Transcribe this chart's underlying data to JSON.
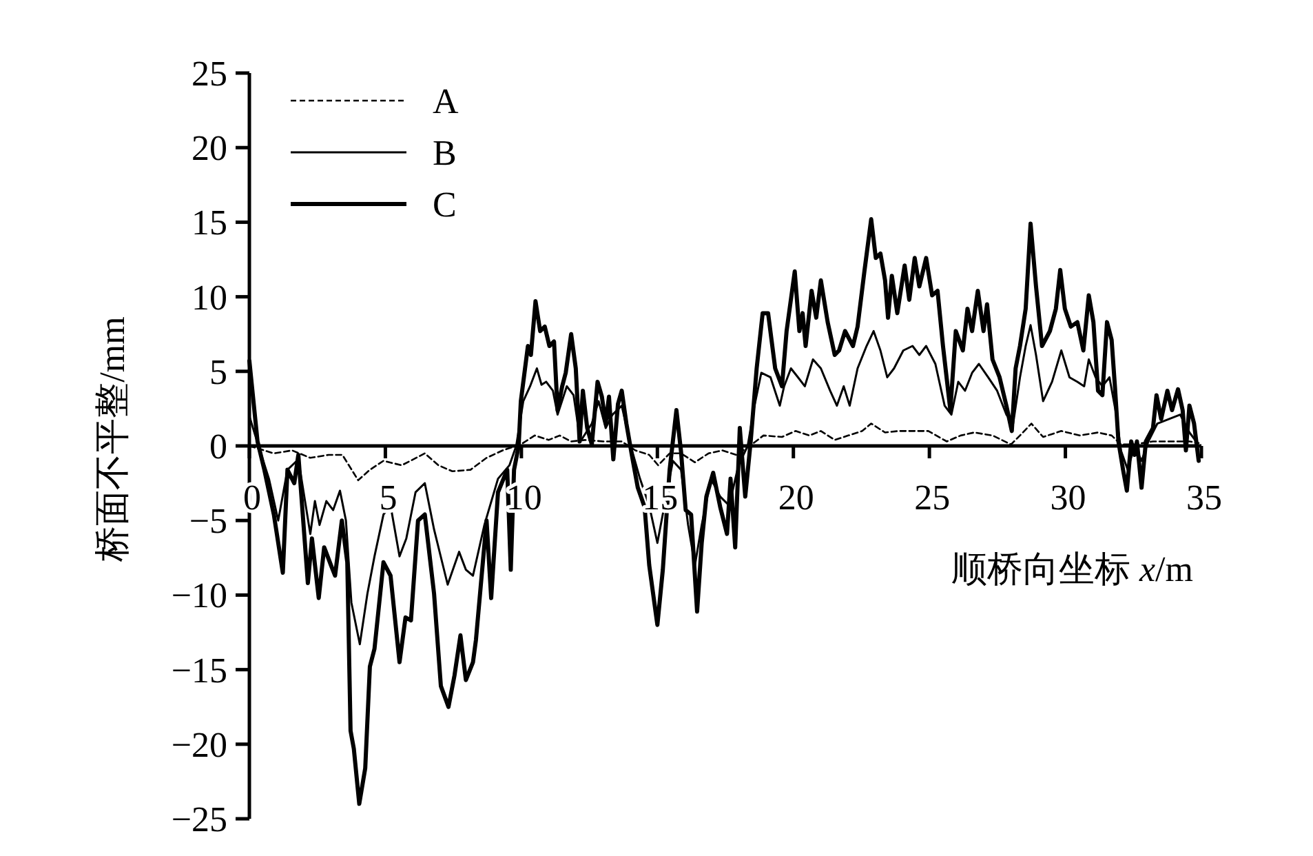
{
  "chart_data": {
    "type": "line",
    "xlabel": "顺桥向坐标 *x*/m",
    "ylabel": "桥面不平整/mm",
    "xlim": [
      0,
      35
    ],
    "ylim": [
      -25,
      25
    ],
    "xticks": [
      0,
      5,
      10,
      15,
      20,
      25,
      30,
      35
    ],
    "yticks": [
      {
        "value": -25,
        "label": "−25"
      },
      {
        "value": -20,
        "label": "−20"
      },
      {
        "value": -15,
        "label": "−15"
      },
      {
        "value": -10,
        "label": "−10"
      },
      {
        "value": -5,
        "label": "−5"
      },
      0,
      5,
      10,
      15,
      20,
      25
    ],
    "legend": "top left",
    "series": [
      {
        "name": "A",
        "color": "#000000",
        "line_style": "dashed",
        "x": [
          0,
          0.9,
          1.57,
          2.24,
          2.91,
          3.42,
          4.0,
          4.43,
          4.93,
          5.6,
          6.45,
          6.95,
          7.46,
          8.13,
          8.72,
          9.31,
          9.98,
          10.49,
          11.0,
          11.41,
          11.83,
          12.34,
          13.01,
          13.69,
          14.19,
          14.7,
          15.03,
          15.45,
          15.87,
          16.38,
          16.88,
          17.39,
          17.9,
          18.4,
          18.9,
          19.58,
          20.08,
          20.59,
          21.01,
          21.52,
          22.02,
          22.53,
          22.86,
          23.37,
          23.87,
          24.38,
          24.96,
          25.64,
          26.15,
          26.65,
          27.32,
          28.0,
          28.33,
          28.75,
          29.18,
          29.85,
          30.52,
          31.2,
          31.7,
          32.04,
          32.54,
          33.22,
          33.89,
          34.56,
          34.9
        ],
        "values": [
          0,
          -0.5,
          -0.3,
          -0.8,
          -0.6,
          -0.6,
          -2.3,
          -1.6,
          -1.0,
          -1.3,
          -0.5,
          -1.3,
          -1.7,
          -1.6,
          -0.8,
          -0.3,
          0.1,
          0.7,
          0.4,
          0.7,
          0.3,
          0.4,
          0.3,
          0.3,
          -0.3,
          -0.6,
          -1.3,
          -0.5,
          -0.5,
          -1.1,
          -0.5,
          -0.3,
          -0.6,
          0,
          0.7,
          0.6,
          1.0,
          0.7,
          1.0,
          0.4,
          0.7,
          1.0,
          1.5,
          0.9,
          1.0,
          1.0,
          1.0,
          0.3,
          0.7,
          0.9,
          0.7,
          0.1,
          0.7,
          1.5,
          0.6,
          1.0,
          0.7,
          0.9,
          0.7,
          0.1,
          0.1,
          0.3,
          0.3,
          0.3,
          0.2
        ]
      },
      {
        "name": "B",
        "color": "#000000",
        "line_style": "solid",
        "x": [
          0,
          0.3,
          0.72,
          1.06,
          1.4,
          1.8,
          2.24,
          2.41,
          2.58,
          2.83,
          3.08,
          3.33,
          3.55,
          3.75,
          4.06,
          4.34,
          4.6,
          4.93,
          5.19,
          5.52,
          5.77,
          6.11,
          6.45,
          6.79,
          7.29,
          7.71,
          7.96,
          8.22,
          8.64,
          9.14,
          9.56,
          9.81,
          10.07,
          10.32,
          10.57,
          10.74,
          10.91,
          11.16,
          11.33,
          11.67,
          11.92,
          12.17,
          12.59,
          12.84,
          13.1,
          13.35,
          13.69,
          14.02,
          14.36,
          14.7,
          15.0,
          15.29,
          15.57,
          15.87,
          16.13,
          16.38,
          16.63,
          16.97,
          17.31,
          17.64,
          17.98,
          18.32,
          18.57,
          18.82,
          19.16,
          19.5,
          19.66,
          19.91,
          20.17,
          20.42,
          20.72,
          21.01,
          21.35,
          21.6,
          21.85,
          22.07,
          22.36,
          22.69,
          22.95,
          23.2,
          23.45,
          23.7,
          24.04,
          24.38,
          24.63,
          24.88,
          25.22,
          25.56,
          25.81,
          26.06,
          26.31,
          26.57,
          26.82,
          27.16,
          27.49,
          27.83,
          28.08,
          28.33,
          28.54,
          28.72,
          28.92,
          29.18,
          29.51,
          29.85,
          30.15,
          30.44,
          30.69,
          30.86,
          31.11,
          31.36,
          31.62,
          31.87,
          32.04,
          32.29,
          32.54,
          32.8,
          33.05,
          33.38,
          33.8,
          34.22,
          34.56,
          34.81
        ],
        "values": [
          2.0,
          0.2,
          -2.2,
          -5.0,
          -1.6,
          -0.9,
          -5.9,
          -3.7,
          -5.3,
          -3.7,
          -4.3,
          -3.0,
          -5.0,
          -10.5,
          -13.3,
          -9.9,
          -7.4,
          -4.6,
          -4.0,
          -7.4,
          -6.2,
          -3.1,
          -2.5,
          -5.6,
          -9.3,
          -7.1,
          -8.3,
          -8.7,
          -5.3,
          -2.2,
          -1.3,
          0,
          3.0,
          4.0,
          5.2,
          4.1,
          4.3,
          3.7,
          2.1,
          4.0,
          3.4,
          0.3,
          1.5,
          3.0,
          1.2,
          2.1,
          2.7,
          0,
          -2.2,
          -4.0,
          -6.5,
          -3.7,
          -1.0,
          -1.6,
          -5.3,
          -8.0,
          -5.3,
          -2.2,
          -3.4,
          -4.0,
          -1.3,
          0,
          2.7,
          4.9,
          4.6,
          2.7,
          4.0,
          5.2,
          4.6,
          4.0,
          5.8,
          5.2,
          3.7,
          2.7,
          4.0,
          2.7,
          5.2,
          6.7,
          7.7,
          6.4,
          4.6,
          5.2,
          6.4,
          6.7,
          6.1,
          6.7,
          5.5,
          2.7,
          2.1,
          4.3,
          3.7,
          4.9,
          5.5,
          4.6,
          3.7,
          2.1,
          1.5,
          4.6,
          6.7,
          8.1,
          6.1,
          3.0,
          4.3,
          6.4,
          4.6,
          4.3,
          4.0,
          5.8,
          4.6,
          4.0,
          4.6,
          2.1,
          -0.3,
          -1.6,
          0,
          -1.0,
          0.3,
          1.5,
          1.8,
          2.1,
          0.9,
          0.3
        ]
      },
      {
        "name": "C",
        "color": "#000000",
        "line_style": "solid",
        "x": [
          0,
          0.3,
          0.55,
          0.9,
          1.23,
          1.4,
          1.65,
          1.8,
          2.15,
          2.3,
          2.55,
          2.75,
          3.0,
          3.15,
          3.4,
          3.6,
          3.72,
          3.84,
          4.04,
          4.26,
          4.43,
          4.6,
          4.93,
          5.19,
          5.52,
          5.74,
          5.94,
          6.2,
          6.45,
          6.79,
          7.04,
          7.32,
          7.54,
          7.76,
          7.96,
          8.22,
          8.33,
          8.72,
          8.89,
          9.14,
          9.48,
          9.61,
          9.73,
          9.9,
          9.98,
          10.24,
          10.35,
          10.52,
          10.69,
          10.86,
          11.03,
          11.2,
          11.33,
          11.5,
          11.63,
          11.83,
          12.0,
          12.14,
          12.26,
          12.42,
          12.59,
          12.8,
          12.96,
          13.1,
          13.22,
          13.38,
          13.55,
          13.69,
          13.86,
          14.06,
          14.28,
          14.53,
          14.7,
          15.0,
          15.2,
          15.45,
          15.7,
          15.87,
          16.04,
          16.24,
          16.46,
          16.63,
          16.8,
          17.05,
          17.31,
          17.56,
          17.69,
          17.86,
          18.03,
          18.23,
          18.43,
          18.65,
          18.87,
          19.07,
          19.33,
          19.58,
          19.75,
          20.05,
          20.22,
          20.34,
          20.45,
          20.67,
          20.84,
          21.01,
          21.26,
          21.52,
          21.68,
          21.9,
          22.19,
          22.36,
          22.61,
          22.86,
          23.03,
          23.2,
          23.37,
          23.48,
          23.62,
          23.82,
          24.09,
          24.26,
          24.46,
          24.63,
          24.88,
          25.1,
          25.3,
          25.5,
          25.77,
          25.97,
          26.23,
          26.4,
          26.57,
          26.78,
          26.99,
          27.12,
          27.32,
          27.58,
          27.83,
          28.03,
          28.17,
          28.33,
          28.54,
          28.72,
          28.92,
          29.14,
          29.43,
          29.65,
          29.81,
          29.98,
          30.2,
          30.44,
          30.66,
          30.86,
          31.03,
          31.2,
          31.36,
          31.53,
          31.7,
          31.82,
          31.95,
          32.12,
          32.26,
          32.42,
          32.54,
          32.63,
          32.8,
          32.96,
          33.22,
          33.35,
          33.52,
          33.75,
          33.92,
          34.14,
          34.31,
          34.43,
          34.56,
          34.73,
          34.9
        ],
        "values": [
          5.7,
          0.3,
          -1.6,
          -4.6,
          -8.5,
          -1.6,
          -2.5,
          -0.6,
          -9.2,
          -6.2,
          -10.2,
          -6.8,
          -8.0,
          -8.7,
          -5.0,
          -7.8,
          -19.1,
          -20.3,
          -24.0,
          -21.6,
          -14.8,
          -13.6,
          -7.8,
          -8.7,
          -14.5,
          -11.5,
          -11.7,
          -5.0,
          -4.6,
          -9.9,
          -16.1,
          -17.5,
          -15.4,
          -12.7,
          -15.7,
          -14.5,
          -13.0,
          -5.0,
          -10.2,
          -3.1,
          -1.6,
          -8.3,
          -1.6,
          0,
          3.0,
          6.7,
          6.1,
          9.7,
          7.7,
          8.0,
          6.7,
          7.0,
          2.4,
          4.0,
          4.9,
          7.5,
          5.2,
          0.3,
          3.7,
          1.2,
          0.1,
          4.3,
          3.3,
          1.5,
          3.3,
          -0.9,
          2.8,
          3.7,
          1.5,
          -0.6,
          -2.8,
          -4.1,
          -8.0,
          -12.0,
          -8.3,
          -1.6,
          2.4,
          -0.4,
          -4.3,
          -4.6,
          -11.1,
          -6.5,
          -3.4,
          -1.8,
          -4.1,
          -5.9,
          -2.2,
          -6.8,
          1.2,
          -3.4,
          0.3,
          5.2,
          8.9,
          8.9,
          5.2,
          4.0,
          7.7,
          11.7,
          7.7,
          8.9,
          6.7,
          10.4,
          8.6,
          11.1,
          8.3,
          6.1,
          6.4,
          7.7,
          6.7,
          8.0,
          11.7,
          15.2,
          12.6,
          12.9,
          11.1,
          8.6,
          11.4,
          8.9,
          12.1,
          9.8,
          12.6,
          10.7,
          12.6,
          10.1,
          10.4,
          6.7,
          2.4,
          7.7,
          6.4,
          9.2,
          7.7,
          10.4,
          7.7,
          9.5,
          5.8,
          4.6,
          2.7,
          1.0,
          5.2,
          6.7,
          9.2,
          14.9,
          10.7,
          6.7,
          7.7,
          9.2,
          11.8,
          9.2,
          8.0,
          8.3,
          6.4,
          10.1,
          8.3,
          3.7,
          3.4,
          8.3,
          7.1,
          4.0,
          0.3,
          -1.6,
          -3.0,
          0.3,
          -0.6,
          0.3,
          -2.8,
          0.3,
          1.2,
          3.4,
          1.8,
          3.7,
          2.4,
          3.8,
          2.4,
          -0.3,
          2.7,
          1.5,
          -1.0
        ]
      }
    ]
  }
}
